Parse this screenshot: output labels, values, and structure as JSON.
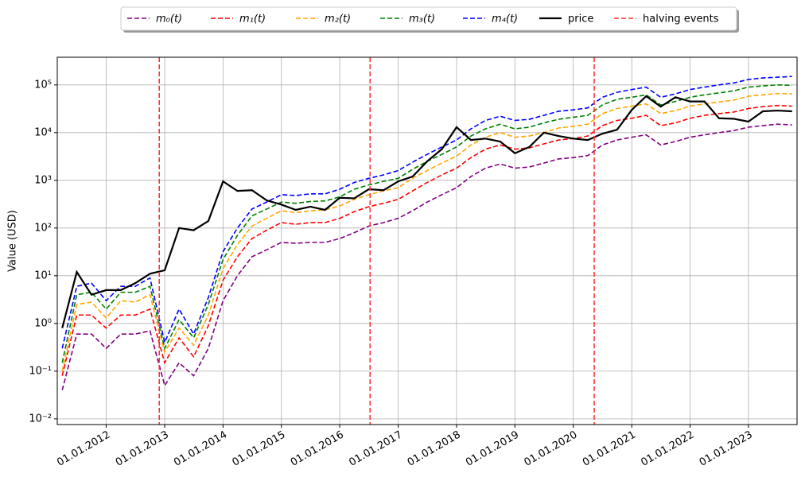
{
  "chart_data": {
    "type": "line",
    "y_label": "Value (USD)",
    "log_y": true,
    "grid": true,
    "legend": "upper center",
    "x": [
      "2011-04-01",
      "2011-07-01",
      "2011-10-01",
      "2012-01-01",
      "2012-04-01",
      "2012-07-01",
      "2012-10-01",
      "2013-01-01",
      "2013-04-01",
      "2013-07-01",
      "2013-10-01",
      "2014-01-01",
      "2014-04-01",
      "2014-07-01",
      "2014-10-01",
      "2015-01-01",
      "2015-04-01",
      "2015-07-01",
      "2015-10-01",
      "2016-01-01",
      "2016-04-01",
      "2016-07-01",
      "2016-10-01",
      "2017-01-01",
      "2017-04-01",
      "2017-07-01",
      "2017-10-01",
      "2018-01-01",
      "2018-04-01",
      "2018-07-01",
      "2018-10-01",
      "2019-01-01",
      "2019-04-01",
      "2019-07-01",
      "2019-10-01",
      "2020-01-01",
      "2020-04-01",
      "2020-07-01",
      "2020-10-01",
      "2021-01-01",
      "2021-04-01",
      "2021-07-01",
      "2021-10-01",
      "2022-01-01",
      "2022-04-01",
      "2022-07-01",
      "2022-10-01",
      "2023-01-01",
      "2023-04-01",
      "2023-07-01",
      "2023-10-01"
    ],
    "series": [
      {
        "name": "m₀(t)",
        "color": "#800080",
        "dash": true,
        "values": [
          0.04,
          0.6,
          0.6,
          0.3,
          0.6,
          0.6,
          0.7,
          0.05,
          0.15,
          0.08,
          0.3,
          3,
          10,
          25,
          35,
          50,
          48,
          50,
          50,
          60,
          80,
          110,
          130,
          160,
          230,
          350,
          500,
          700,
          1200,
          1800,
          2200,
          1800,
          1900,
          2300,
          2800,
          3000,
          3300,
          5500,
          7000,
          8000,
          9000,
          5500,
          6500,
          8000,
          9000,
          10000,
          11000,
          13000,
          14000,
          15000,
          14500
        ]
      },
      {
        "name": "m₁(t)",
        "color": "#ff0000",
        "dash": true,
        "values": [
          0.08,
          1.5,
          1.5,
          0.8,
          1.5,
          1.5,
          2,
          0.15,
          0.5,
          0.2,
          0.9,
          8,
          25,
          60,
          90,
          130,
          120,
          130,
          130,
          160,
          220,
          280,
          330,
          400,
          600,
          900,
          1300,
          1800,
          3000,
          4500,
          5500,
          4500,
          4800,
          5800,
          7000,
          7500,
          8500,
          14000,
          18000,
          20000,
          23000,
          14000,
          16000,
          20000,
          23000,
          25000,
          27000,
          32000,
          35000,
          37000,
          36000
        ]
      },
      {
        "name": "m₂(t)",
        "color": "#ffa500",
        "dash": true,
        "values": [
          0.1,
          2.5,
          2.8,
          1.3,
          3,
          2.8,
          4,
          0.25,
          0.8,
          0.35,
          1.5,
          14,
          45,
          110,
          160,
          230,
          210,
          230,
          240,
          290,
          400,
          500,
          600,
          700,
          1100,
          1600,
          2300,
          3200,
          5500,
          8000,
          10000,
          8000,
          8500,
          10000,
          12500,
          13500,
          15000,
          25000,
          32000,
          36000,
          40000,
          25000,
          29000,
          36000,
          40000,
          44000,
          48000,
          58000,
          62000,
          66000,
          65000
        ]
      },
      {
        "name": "m₃(t)",
        "color": "#008000",
        "dash": true,
        "values": [
          0.15,
          4,
          4.5,
          2,
          4.5,
          4.5,
          6,
          0.3,
          1.2,
          0.5,
          2.5,
          22,
          70,
          180,
          250,
          350,
          330,
          360,
          370,
          450,
          650,
          800,
          950,
          1100,
          1700,
          2500,
          3500,
          5000,
          8500,
          12000,
          15000,
          12000,
          13000,
          16000,
          19000,
          21000,
          23000,
          38000,
          50000,
          55000,
          62000,
          38000,
          45000,
          55000,
          62000,
          68000,
          75000,
          90000,
          95000,
          100000,
          98000
        ]
      },
      {
        "name": "m₄(t)",
        "color": "#0000ff",
        "dash": true,
        "values": [
          0.3,
          6,
          7,
          3,
          6,
          6,
          9,
          0.4,
          2,
          0.6,
          3.5,
          32,
          100,
          250,
          350,
          500,
          480,
          520,
          520,
          650,
          900,
          1100,
          1300,
          1600,
          2400,
          3500,
          5000,
          7000,
          12000,
          18000,
          22000,
          18000,
          19000,
          23000,
          28000,
          30000,
          33000,
          55000,
          70000,
          80000,
          90000,
          55000,
          65000,
          80000,
          90000,
          100000,
          110000,
          130000,
          140000,
          145000,
          150000
        ]
      },
      {
        "name": "price",
        "color": "#000000",
        "dash": false,
        "values": [
          0.8,
          12,
          4,
          5,
          5,
          7,
          11,
          13,
          100,
          90,
          140,
          950,
          600,
          620,
          380,
          310,
          240,
          280,
          240,
          430,
          420,
          650,
          620,
          950,
          1200,
          2500,
          4500,
          13000,
          7000,
          7500,
          6500,
          3700,
          5000,
          10000,
          8500,
          7500,
          7000,
          9500,
          11500,
          30000,
          58000,
          35000,
          55000,
          45000,
          45000,
          20000,
          19500,
          17000,
          28000,
          29000,
          28000
        ]
      }
    ],
    "halving_events": {
      "name": "halving events",
      "color": "#ff3333",
      "x": [
        "2012-11-28",
        "2016-07-09",
        "2020-05-11"
      ]
    },
    "xlim": [
      "2011-03-01",
      "2023-11-01"
    ],
    "xticks": [
      {
        "value": "2012-01-01",
        "label": "01.01.2012"
      },
      {
        "value": "2013-01-01",
        "label": "01.01.2013"
      },
      {
        "value": "2014-01-01",
        "label": "01.01.2014"
      },
      {
        "value": "2015-01-01",
        "label": "01.01.2015"
      },
      {
        "value": "2016-01-01",
        "label": "01.01.2016"
      },
      {
        "value": "2017-01-01",
        "label": "01.01.2017"
      },
      {
        "value": "2018-01-01",
        "label": "01.01.2018"
      },
      {
        "value": "2019-01-01",
        "label": "01.01.2019"
      },
      {
        "value": "2020-01-01",
        "label": "01.01.2020"
      },
      {
        "value": "2021-01-01",
        "label": "01.01.2021"
      },
      {
        "value": "2022-01-01",
        "label": "01.01.2022"
      },
      {
        "value": "2023-01-01",
        "label": "01.01.2023"
      }
    ],
    "ylim": [
      0.0076,
      380000
    ],
    "yticks": [
      {
        "value": 0.01,
        "label": "10⁻²"
      },
      {
        "value": 0.1,
        "label": "10⁻¹"
      },
      {
        "value": 1,
        "label": "10⁰"
      },
      {
        "value": 10,
        "label": "10¹"
      },
      {
        "value": 100,
        "label": "10²"
      },
      {
        "value": 1000,
        "label": "10³"
      },
      {
        "value": 10000,
        "label": "10⁴"
      },
      {
        "value": 100000,
        "label": "10⁵"
      }
    ]
  }
}
